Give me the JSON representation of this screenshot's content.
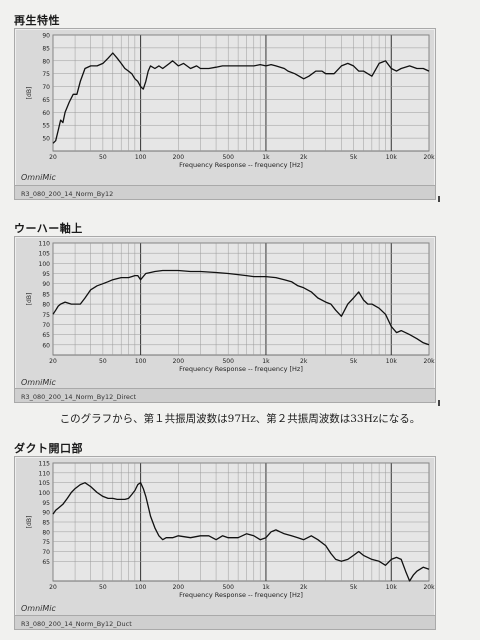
{
  "captions": {
    "middle": "このグラフから、第１共振周波数は97Hz、第２共振周波数は33Hzになる。"
  },
  "common": {
    "brand": "OmniMic",
    "xlabel": "Frequency Response -- frequency [Hz]",
    "ylabel": "[dB]",
    "xticks": [
      {
        "f": 20,
        "label": "20"
      },
      {
        "f": 50,
        "label": "50"
      },
      {
        "f": 100,
        "label": "100"
      },
      {
        "f": 200,
        "label": "200"
      },
      {
        "f": 500,
        "label": "500"
      },
      {
        "f": 1000,
        "label": "1k"
      },
      {
        "f": 2000,
        "label": "2k"
      },
      {
        "f": 5000,
        "label": "5k"
      },
      {
        "f": 10000,
        "label": "10k"
      },
      {
        "f": 20000,
        "label": "20k"
      }
    ]
  },
  "chart_data": [
    {
      "type": "line",
      "title": "再生特性",
      "file_label": "R3_080_200_14_Norm_By12",
      "xlabel": "Frequency Response -- frequency [Hz]",
      "ylabel": "[dB]",
      "x_scale": "log",
      "xlim": [
        20,
        20000
      ],
      "ylim": [
        45,
        90
      ],
      "yticks": [
        50,
        55,
        60,
        65,
        70,
        75,
        80,
        85,
        90
      ],
      "series": [
        {
          "x": [
            20,
            21,
            22,
            23,
            24,
            25,
            27,
            29,
            31,
            33,
            36,
            40,
            45,
            50,
            55,
            60,
            65,
            70,
            75,
            80,
            85,
            90,
            95,
            100,
            105,
            110,
            115,
            120,
            130,
            140,
            150,
            160,
            170,
            180,
            190,
            200,
            220,
            250,
            280,
            300,
            350,
            400,
            450,
            500,
            600,
            700,
            800,
            900,
            1000,
            1100,
            1200,
            1400,
            1500,
            1700,
            2000,
            2200,
            2500,
            2800,
            3000,
            3500,
            4000,
            4500,
            5000,
            5500,
            6000,
            7000,
            8000,
            9000,
            10000,
            11000,
            12000,
            14000,
            16000,
            18000,
            20000
          ],
          "y": [
            48,
            49,
            53,
            57,
            56,
            60,
            64,
            67,
            67,
            72,
            77,
            78,
            78,
            79,
            81,
            83,
            81,
            79,
            77,
            76,
            75,
            73,
            72,
            70,
            69,
            72,
            76,
            78,
            77,
            78,
            77,
            78,
            79,
            80,
            79,
            78,
            79,
            77,
            78,
            77,
            77,
            77.5,
            78,
            78,
            78,
            78,
            78,
            78.5,
            78,
            78.5,
            78,
            77,
            76,
            75,
            73,
            74,
            76,
            76,
            75,
            75,
            78,
            79,
            78,
            76,
            76,
            74,
            79,
            80,
            77,
            76,
            77,
            78,
            77,
            77,
            76
          ]
        }
      ]
    },
    {
      "type": "line",
      "title": "ウーハー軸上",
      "file_label": "R3_080_200_14_Norm_By12_Direct",
      "xlabel": "Frequency Response -- frequency [Hz]",
      "ylabel": "[dB]",
      "x_scale": "log",
      "xlim": [
        20,
        20000
      ],
      "ylim": [
        55,
        110
      ],
      "yticks": [
        60,
        65,
        70,
        75,
        80,
        85,
        90,
        95,
        100,
        105,
        110
      ],
      "series": [
        {
          "x": [
            20,
            21,
            22,
            23,
            25,
            28,
            30,
            33,
            36,
            40,
            45,
            50,
            55,
            60,
            65,
            70,
            75,
            80,
            85,
            90,
            95,
            100,
            110,
            120,
            130,
            150,
            170,
            200,
            250,
            300,
            400,
            500,
            600,
            700,
            800,
            1000,
            1200,
            1400,
            1600,
            1800,
            2000,
            2300,
            2600,
            3000,
            3300,
            3600,
            4000,
            4500,
            5000,
            5500,
            6000,
            6500,
            7000,
            8000,
            9000,
            10000,
            11000,
            12000,
            14000,
            16000,
            18000,
            20000
          ],
          "y": [
            75,
            77,
            79,
            80,
            81,
            80,
            80,
            80,
            83,
            87,
            89,
            90,
            91,
            92,
            92.5,
            93,
            93,
            93,
            93.5,
            94,
            94,
            92,
            95,
            95.5,
            96,
            96.5,
            96.5,
            96.5,
            96,
            96,
            95.5,
            95,
            94.5,
            94,
            93.5,
            93.5,
            93,
            92,
            91,
            89,
            88,
            86,
            83,
            81,
            80,
            77,
            74,
            80,
            83,
            86,
            82,
            80,
            80,
            78,
            75,
            69,
            66,
            67,
            65,
            63,
            61,
            60
          ]
        }
      ]
    },
    {
      "type": "line",
      "title": "ダクト開口部",
      "file_label": "R3_080_200_14_Norm_By12_Duct",
      "xlabel": "Frequency Response -- frequency [Hz]",
      "ylabel": "[dB]",
      "x_scale": "log",
      "xlim": [
        20,
        20000
      ],
      "ylim": [
        55,
        115
      ],
      "yticks": [
        65,
        70,
        75,
        80,
        85,
        90,
        95,
        100,
        105,
        110,
        115
      ],
      "series": [
        {
          "x": [
            20,
            21,
            22,
            24,
            26,
            28,
            30,
            33,
            36,
            40,
            45,
            50,
            55,
            60,
            65,
            70,
            75,
            80,
            85,
            90,
            95,
            100,
            105,
            110,
            115,
            120,
            130,
            140,
            150,
            160,
            180,
            200,
            250,
            300,
            350,
            400,
            450,
            500,
            600,
            700,
            800,
            900,
            1000,
            1100,
            1200,
            1400,
            1600,
            1800,
            2000,
            2300,
            2600,
            3000,
            3300,
            3600,
            4000,
            4500,
            5000,
            5500,
            6000,
            7000,
            8000,
            9000,
            10000,
            11000,
            12000,
            13000,
            14000,
            15000,
            16000,
            18000,
            20000
          ],
          "y": [
            89,
            91,
            92,
            94,
            97,
            100,
            102,
            104,
            105,
            103,
            100,
            98,
            97,
            97,
            96.5,
            96.5,
            96.5,
            97,
            99,
            101,
            104,
            105,
            102,
            98,
            93,
            88,
            82,
            78,
            76,
            77,
            77,
            78,
            77,
            78,
            78,
            76,
            78,
            77,
            77,
            79,
            78,
            76,
            77,
            80,
            81,
            79,
            78,
            77,
            76,
            78,
            76,
            73,
            69,
            66,
            65,
            66,
            68,
            70,
            68,
            66,
            65,
            63,
            66,
            67,
            66,
            60,
            55,
            58,
            60,
            62,
            61
          ]
        }
      ]
    }
  ]
}
